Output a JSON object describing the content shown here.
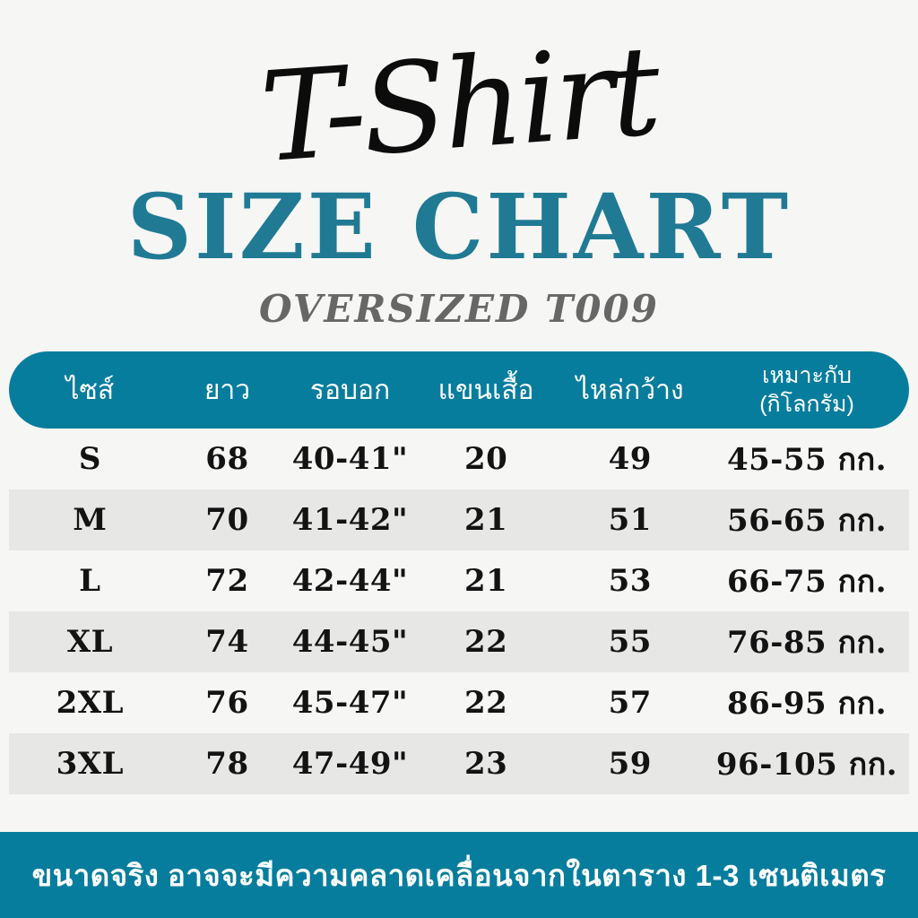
{
  "page": {
    "background": "#f6f6f4",
    "accent_teal": "#077d9e",
    "title_teal": "#207a94"
  },
  "header": {
    "script_title": "T-Shirt",
    "main_title": "SIZE CHART",
    "subtitle": "OVERSIZED T009"
  },
  "table": {
    "columns": {
      "size": "ไซส์",
      "length": "ยาว",
      "chest": "รอบอก",
      "sleeve": "แขนเสื้อ",
      "shoulder": "ไหล่กว้าง",
      "fit_line1": "เหมาะกับ",
      "fit_line2": "(กิโลกรัม)"
    },
    "rows": [
      {
        "size": "S",
        "length": "68",
        "chest": "40-41\"",
        "sleeve": "20",
        "shoulder": "49",
        "weight": "45-55 กก."
      },
      {
        "size": "M",
        "length": "70",
        "chest": "41-42\"",
        "sleeve": "21",
        "shoulder": "51",
        "weight": "56-65 กก."
      },
      {
        "size": "L",
        "length": "72",
        "chest": "42-44\"",
        "sleeve": "21",
        "shoulder": "53",
        "weight": "66-75 กก."
      },
      {
        "size": "XL",
        "length": "74",
        "chest": "44-45\"",
        "sleeve": "22",
        "shoulder": "55",
        "weight": "76-85 กก."
      },
      {
        "size": "2XL",
        "length": "76",
        "chest": "45-47\"",
        "sleeve": "22",
        "shoulder": "57",
        "weight": "86-95 กก."
      },
      {
        "size": "3XL",
        "length": "78",
        "chest": "47-49\"",
        "sleeve": "23",
        "shoulder": "59",
        "weight": "96-105 กก."
      }
    ]
  },
  "footer": {
    "note": "ขนาดจริง อาจจะมีความคลาดเคลื่อนจากในตาราง 1-3 เซนติเมตร"
  },
  "chart_data": {
    "type": "table",
    "title": "T-Shirt SIZE CHART OVERSIZED T009",
    "columns": [
      "ไซส์",
      "ยาว",
      "รอบอก",
      "แขนเสื้อ",
      "ไหล่กว้าง",
      "เหมาะกับ (กิโลกรัม)"
    ],
    "rows": [
      [
        "S",
        "68",
        "40-41\"",
        "20",
        "49",
        "45-55 กก."
      ],
      [
        "M",
        "70",
        "41-42\"",
        "21",
        "51",
        "56-65 กก."
      ],
      [
        "L",
        "72",
        "42-44\"",
        "21",
        "53",
        "66-75 กก."
      ],
      [
        "XL",
        "74",
        "44-45\"",
        "22",
        "55",
        "76-85 กก."
      ],
      [
        "2XL",
        "76",
        "45-47\"",
        "22",
        "57",
        "86-95 กก."
      ],
      [
        "3XL",
        "78",
        "47-49\"",
        "23",
        "59",
        "96-105 กก."
      ]
    ],
    "footnote": "ขนาดจริง อาจจะมีความคลาดเคลื่อนจากในตาราง 1-3 เซนติเมตร"
  }
}
